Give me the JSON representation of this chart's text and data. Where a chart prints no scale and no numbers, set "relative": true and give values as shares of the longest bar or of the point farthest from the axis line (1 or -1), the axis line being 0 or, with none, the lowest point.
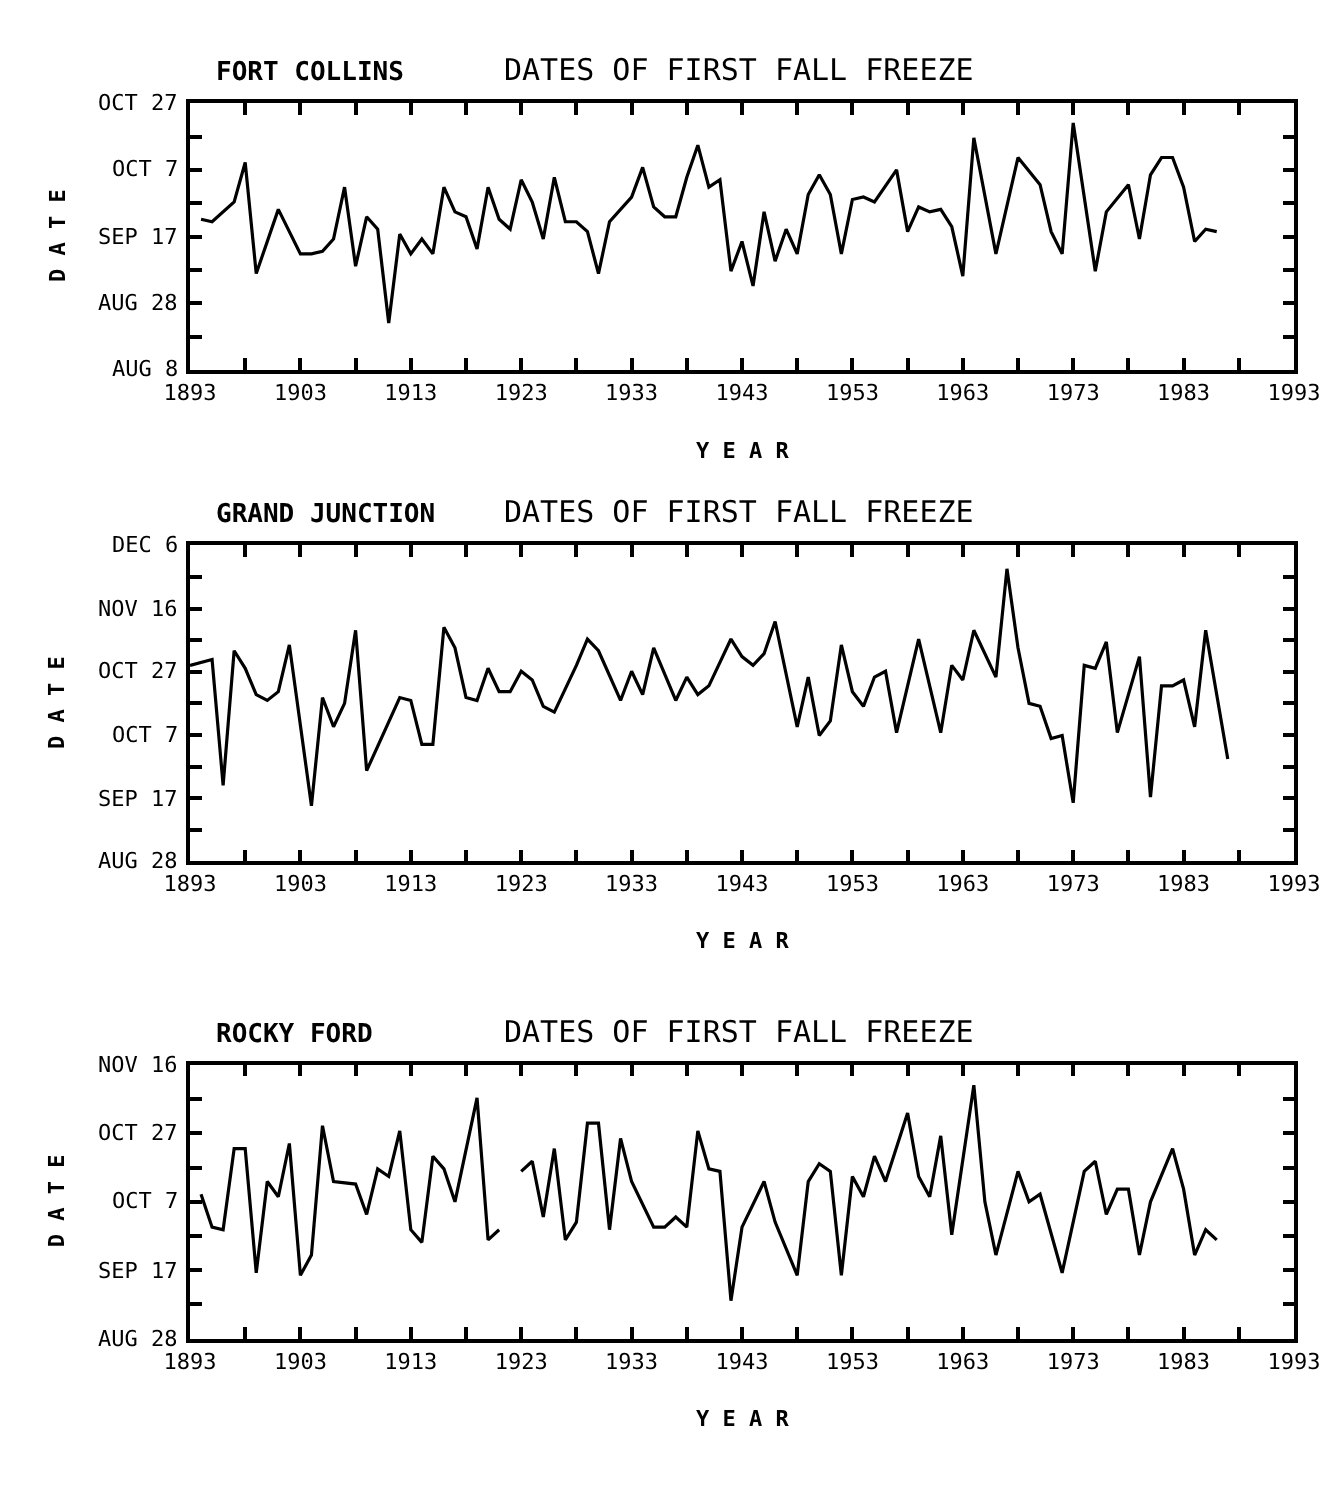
{
  "chart_data": [
    {
      "type": "line",
      "relative": true,
      "title": "FORT COLLINS",
      "subtitle": "DATES OF FIRST FALL FREEZE",
      "xlabel": "Y E A R",
      "ylabel": "D A T E",
      "annotations": [
        "AUG 8",
        "AUG 28",
        "SEP 17",
        "OCT 7",
        "OCT 27"
      ],
      "x": [
        1894,
        1895,
        1897,
        1898,
        1899,
        1901,
        1903,
        1904,
        1905,
        1906,
        1907,
        1908,
        1909,
        1910,
        1911,
        1912,
        1913,
        1914,
        1915,
        1916,
        1917,
        1918,
        1919,
        1920,
        1921,
        1922,
        1923,
        1924,
        1925,
        1926,
        1927,
        1928,
        1929,
        1930,
        1931,
        1933,
        1934,
        1935,
        1936,
        1937,
        1938,
        1939,
        1940,
        1941,
        1942,
        1943,
        1944,
        1945,
        1946,
        1947,
        1948,
        1949,
        1950,
        1951,
        1952,
        1953,
        1954,
        1955,
        1957,
        1958,
        1959,
        1960,
        1961,
        1962,
        1963,
        1964,
        1966,
        1968,
        1970,
        1971,
        1972,
        1973,
        1975,
        1976,
        1978,
        1979,
        1980,
        1981,
        1982,
        1983,
        1984,
        1985,
        1986
      ],
      "series": [
        {
          "color": "#000000",
          "values": [
            0.61,
            0.6,
            0.68,
            0.84,
            0.39,
            0.65,
            0.47,
            0.47,
            0.48,
            0.53,
            0.74,
            0.42,
            0.62,
            0.57,
            0.19,
            0.55,
            0.47,
            0.53,
            0.47,
            0.74,
            0.64,
            0.62,
            0.49,
            0.74,
            0.61,
            0.57,
            0.77,
            0.68,
            0.53,
            0.78,
            0.6,
            0.6,
            0.56,
            0.39,
            0.6,
            0.7,
            0.82,
            0.66,
            0.62,
            0.62,
            0.78,
            0.91,
            0.74,
            0.77,
            0.4,
            0.52,
            0.34,
            0.64,
            0.44,
            0.57,
            0.47,
            0.71,
            0.79,
            0.71,
            0.47,
            0.69,
            0.7,
            0.68,
            0.81,
            0.56,
            0.66,
            0.64,
            0.65,
            0.58,
            0.38,
            0.94,
            0.47,
            0.86,
            0.75,
            0.56,
            0.47,
            1,
            0.4,
            0.64,
            0.75,
            0.53,
            0.79,
            0.86,
            0.86,
            0.74,
            0.52,
            0.57,
            0.56
          ]
        }
      ],
      "xlim": [
        1893,
        1993
      ],
      "xticks": [
        1893,
        {
          "value": 1898,
          "label": null
        },
        1903,
        {
          "value": 1908,
          "label": null
        },
        1913,
        {
          "value": 1918,
          "label": null
        },
        1923,
        {
          "value": 1928,
          "label": null
        },
        1933,
        {
          "value": 1938,
          "label": null
        },
        1943,
        {
          "value": 1948,
          "label": null
        },
        1953,
        {
          "value": 1958,
          "label": null
        },
        1963,
        {
          "value": 1968,
          "label": null
        },
        1973,
        {
          "value": 1978,
          "label": null
        },
        1983,
        {
          "value": 1988,
          "label": null
        },
        1993
      ]
    },
    {
      "type": "line",
      "relative": true,
      "title": "GRAND JUNCTION",
      "subtitle": "DATES OF FIRST FALL FREEZE",
      "xlabel": "Y E A R",
      "ylabel": "D A T E",
      "annotations": [
        "AUG 28",
        "SEP 17",
        "OCT 7",
        "OCT 27",
        "NOV 16",
        "DEC 6"
      ],
      "x": [
        1893,
        1895,
        1896,
        1897,
        1898,
        1899,
        1900,
        1901,
        1902,
        1904,
        1905,
        1906,
        1907,
        1908,
        1909,
        1912,
        1913,
        1914,
        1915,
        1916,
        1917,
        1918,
        1919,
        1920,
        1921,
        1922,
        1923,
        1924,
        1925,
        1926,
        1928,
        1929,
        1930,
        1932,
        1933,
        1934,
        1935,
        1937,
        1938,
        1939,
        1940,
        1942,
        1943,
        1944,
        1945,
        1946,
        1948,
        1949,
        1950,
        1951,
        1952,
        1953,
        1954,
        1955,
        1956,
        1957,
        1959,
        1961,
        1962,
        1963,
        1964,
        1966,
        1967,
        1968,
        1969,
        1970,
        1971,
        1972,
        1973,
        1974,
        1975,
        1976,
        1977,
        1979,
        1980,
        1981,
        1982,
        1983,
        1984,
        1985,
        1987
      ],
      "series": [
        {
          "color": "#000000",
          "values": [
            0.67,
            0.69,
            0.26,
            0.72,
            0.66,
            0.57,
            0.55,
            0.58,
            0.74,
            0.19,
            0.56,
            0.46,
            0.54,
            0.79,
            0.31,
            0.56,
            0.55,
            0.4,
            0.4,
            0.8,
            0.73,
            0.56,
            0.55,
            0.66,
            0.58,
            0.58,
            0.65,
            0.62,
            0.53,
            0.51,
            0.67,
            0.76,
            0.72,
            0.55,
            0.65,
            0.57,
            0.73,
            0.55,
            0.63,
            0.57,
            0.6,
            0.76,
            0.7,
            0.67,
            0.71,
            0.82,
            0.46,
            0.63,
            0.43,
            0.48,
            0.74,
            0.58,
            0.53,
            0.63,
            0.65,
            0.44,
            0.76,
            0.44,
            0.67,
            0.62,
            0.79,
            0.63,
            1,
            0.73,
            0.54,
            0.53,
            0.42,
            0.43,
            0.2,
            0.67,
            0.66,
            0.75,
            0.44,
            0.7,
            0.22,
            0.6,
            0.6,
            0.62,
            0.46,
            0.79,
            0.35
          ]
        }
      ],
      "xlim": [
        1893,
        1993
      ],
      "xticks": [
        1893,
        {
          "value": 1898,
          "label": null
        },
        1903,
        {
          "value": 1908,
          "label": null
        },
        1913,
        {
          "value": 1918,
          "label": null
        },
        1923,
        {
          "value": 1928,
          "label": null
        },
        1933,
        {
          "value": 1938,
          "label": null
        },
        1943,
        {
          "value": 1948,
          "label": null
        },
        1953,
        {
          "value": 1958,
          "label": null
        },
        1963,
        {
          "value": 1968,
          "label": null
        },
        1973,
        {
          "value": 1978,
          "label": null
        },
        1983,
        {
          "value": 1988,
          "label": null
        },
        1993
      ]
    },
    {
      "type": "line",
      "relative": true,
      "title": "ROCKY FORD",
      "subtitle": "DATES OF FIRST FALL FREEZE",
      "xlabel": "Y E A R",
      "ylabel": "D A T E",
      "annotations": [
        "AUG 28",
        "SEP 17",
        "OCT 7",
        "OCT 27",
        "NOV 16"
      ],
      "x": [
        1894,
        1895,
        1896,
        1897,
        1898,
        1899,
        1900,
        1901,
        1902,
        1903,
        1904,
        1905,
        1906,
        1908,
        1909,
        1910,
        1911,
        1912,
        1913,
        1914,
        1915,
        1916,
        1917,
        1919,
        1920,
        1921,
        1922,
        1923,
        1924,
        1925,
        1926,
        1927,
        1928,
        1929,
        1930,
        1931,
        1932,
        1933,
        1935,
        1936,
        1937,
        1938,
        1939,
        1940,
        1941,
        1942,
        1943,
        1945,
        1946,
        1948,
        1949,
        1950,
        1951,
        1952,
        1953,
        1954,
        1955,
        1956,
        1958,
        1959,
        1960,
        1961,
        1962,
        1964,
        1965,
        1966,
        1968,
        1969,
        1970,
        1972,
        1974,
        1975,
        1976,
        1977,
        1978,
        1979,
        1980,
        1982,
        1983,
        1984,
        1985,
        1986
      ],
      "series": [
        {
          "color": "#000000",
          "values": [
            0.57,
            0.44,
            0.43,
            0.75,
            0.75,
            0.26,
            0.62,
            0.56,
            0.77,
            0.25,
            0.33,
            0.84,
            0.62,
            0.61,
            0.49,
            0.67,
            0.64,
            0.82,
            0.43,
            0.38,
            0.72,
            0.67,
            0.54,
            0.95,
            0.39,
            0.43,
            null,
            0.66,
            0.7,
            0.48,
            0.75,
            0.39,
            0.46,
            0.85,
            0.85,
            0.43,
            0.79,
            0.62,
            0.44,
            0.44,
            0.48,
            0.44,
            0.82,
            0.67,
            0.66,
            0.15,
            0.44,
            0.62,
            0.46,
            0.25,
            0.62,
            0.69,
            0.66,
            0.25,
            0.64,
            0.56,
            0.72,
            0.62,
            0.89,
            0.64,
            0.56,
            0.8,
            0.41,
            1,
            0.54,
            0.33,
            0.66,
            0.54,
            0.57,
            0.26,
            0.66,
            0.7,
            0.49,
            0.59,
            0.59,
            0.33,
            0.54,
            0.75,
            0.59,
            0.33,
            0.43,
            0.39
          ]
        }
      ],
      "xlim": [
        1893,
        1993
      ],
      "xticks": [
        1893,
        {
          "value": 1898,
          "label": null
        },
        1903,
        {
          "value": 1908,
          "label": null
        },
        1913,
        {
          "value": 1918,
          "label": null
        },
        1923,
        {
          "value": 1928,
          "label": null
        },
        1933,
        {
          "value": 1938,
          "label": null
        },
        1943,
        {
          "value": 1948,
          "label": null
        },
        1953,
        {
          "value": 1958,
          "label": null
        },
        1963,
        {
          "value": 1968,
          "label": null
        },
        1973,
        {
          "value": 1978,
          "label": null
        },
        1983,
        {
          "value": 1988,
          "label": null
        },
        1993
      ]
    }
  ]
}
